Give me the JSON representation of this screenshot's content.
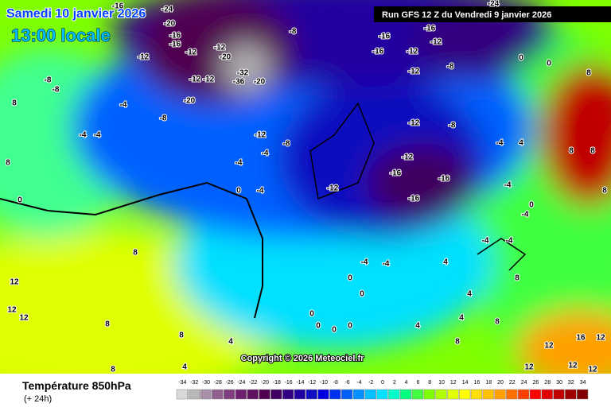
{
  "header": {
    "date": "Samedi 10 janvier 2026",
    "time": "13:00 locale",
    "run": "Run GFS 12 Z du Vendredi 9 janvier 2026"
  },
  "copyright": "Copyright © 2026 Meteociel.fr",
  "footer": {
    "title": "Température 850hPa",
    "lead": "(+ 24h)"
  },
  "legend": {
    "ticks": [
      -34,
      -32,
      -30,
      -28,
      -26,
      -24,
      -22,
      -20,
      -18,
      -16,
      -14,
      -12,
      -10,
      -8,
      -6,
      -4,
      -2,
      0,
      2,
      4,
      6,
      8,
      10,
      12,
      14,
      16,
      18,
      20,
      22,
      24,
      26,
      28,
      30,
      32,
      34
    ],
    "colors": [
      "#d8d8d8",
      "#b8b8b8",
      "#a890a8",
      "#906090",
      "#804080",
      "#702070",
      "#601060",
      "#500050",
      "#400060",
      "#300080",
      "#2000a0",
      "#1010c0",
      "#0000e0",
      "#0030f0",
      "#0060ff",
      "#0090ff",
      "#00c0ff",
      "#00e0ff",
      "#00ffc8",
      "#00ff80",
      "#40ff40",
      "#80ff00",
      "#b0ff00",
      "#e0ff00",
      "#ffff00",
      "#ffe000",
      "#ffc000",
      "#ffa000",
      "#ff7000",
      "#ff4000",
      "#ff0000",
      "#e00000",
      "#c00000",
      "#a00000",
      "#800000"
    ]
  },
  "map": {
    "labels": [
      -16,
      -24,
      -20,
      -16,
      -16,
      -12,
      -12,
      -12,
      -20,
      -32,
      -12,
      -12,
      -36,
      -20,
      -20,
      -8,
      -8,
      -8,
      -4,
      -8,
      -4,
      -4,
      -8,
      -12,
      -4,
      -4,
      -4,
      0,
      0,
      8,
      -12,
      -16,
      -16,
      -12,
      -12,
      -16,
      -12,
      -8,
      -24,
      0,
      0,
      -12,
      -8,
      -12,
      -16,
      -16,
      -16,
      -4,
      -4,
      0,
      -4,
      4,
      8,
      8,
      8,
      8,
      8,
      12,
      12,
      12,
      8,
      8,
      8,
      4,
      8,
      4,
      0,
      0,
      0,
      0,
      0,
      0,
      -4,
      -4,
      -4,
      -4,
      4,
      4,
      4,
      4,
      8,
      8,
      8,
      12,
      12,
      12,
      12,
      16,
      12
    ]
  }
}
